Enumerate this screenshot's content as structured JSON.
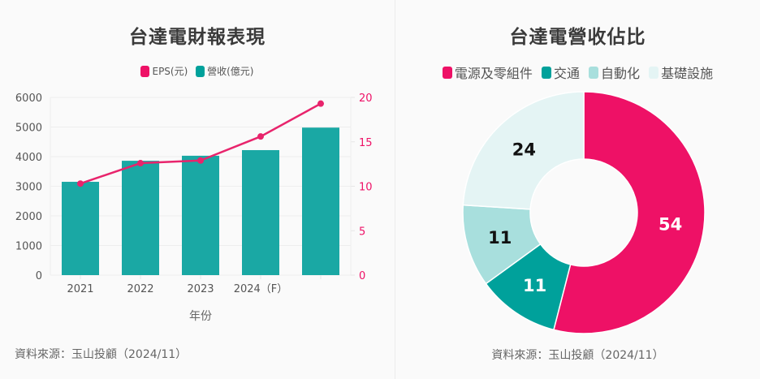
{
  "left_panel": {
    "title": "台達電財報表現",
    "legend": [
      {
        "label": "EPS(元)",
        "color": "#ee1166"
      },
      {
        "label": "營收(億元)",
        "color": "#00a19b"
      }
    ],
    "source": "資料來源：玉山投顧（2024/11）"
  },
  "right_panel": {
    "title": "台達電營收佔比",
    "legend": [
      {
        "label": "電源及零組件",
        "color": "#ee1166"
      },
      {
        "label": "交通",
        "color": "#00a19b"
      },
      {
        "label": "自動化",
        "color": "#a8dfdd"
      },
      {
        "label": "基礎設施",
        "color": "#e4f4f4"
      }
    ],
    "source": "資料來源：玉山投顧（2024/11）"
  },
  "chart_data": [
    {
      "type": "bar",
      "title": "台達電財報表現",
      "xlabel": "年份",
      "categories": [
        "2021",
        "2022",
        "2023",
        "2024（F）",
        ""
      ],
      "series": [
        {
          "name": "營收(億元)",
          "type": "bar",
          "axis": "left",
          "color": "#1aa8a4",
          "values": [
            3150,
            3860,
            4030,
            4220,
            4980
          ]
        },
        {
          "name": "EPS(元)",
          "type": "line",
          "axis": "right",
          "color": "#e8246c",
          "values": [
            10.3,
            12.6,
            12.9,
            15.6,
            19.3
          ]
        }
      ],
      "y_left": {
        "ylim": [
          0,
          6000
        ],
        "ticks": [
          "0",
          "1000",
          "2000",
          "3000",
          "4000",
          "5000",
          "6000"
        ]
      },
      "y_right": {
        "ylim": [
          0,
          20
        ],
        "ticks": [
          "0",
          "5",
          "10",
          "15",
          "20"
        ],
        "color": "#ee1166"
      },
      "grid": true,
      "legend": "top-center"
    },
    {
      "type": "pie",
      "subtype": "donut",
      "title": "台達電營收佔比",
      "slices": [
        {
          "label": "電源及零組件",
          "value": 54,
          "color": "#ee1166",
          "text_color": "#ffffff"
        },
        {
          "label": "交通",
          "value": 11,
          "color": "#00a19b",
          "text_color": "#ffffff"
        },
        {
          "label": "自動化",
          "value": 11,
          "color": "#a8dfdd",
          "text_color": "#111111"
        },
        {
          "label": "基礎設施",
          "value": 24,
          "color": "#e4f4f4",
          "text_color": "#111111"
        }
      ],
      "legend": "top-center"
    }
  ]
}
